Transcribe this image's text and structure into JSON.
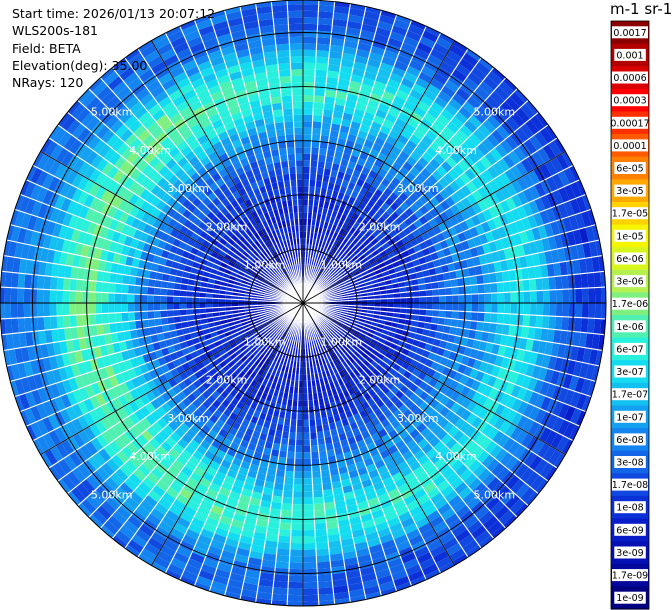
{
  "info": {
    "start_time": "Start time: 2026/01/13 20:07:12",
    "instrument": "WLS200s-181",
    "field": "Field: BETA",
    "elevation": "Elevation(deg): 35.00",
    "nrays": "NRays: 120"
  },
  "units": "m-1 sr-1",
  "colors": {
    "grid": "#000000",
    "ray_gap": "#ffffff",
    "ring_label": "#ffffff"
  },
  "chart_data": {
    "type": "heatmap",
    "projection": "polar (PPI)",
    "field": "BETA",
    "n_rays": 120,
    "range_rings_km": [
      1.0,
      2.0,
      3.0,
      4.0,
      5.0
    ],
    "ring_labels": [
      "1.00km",
      "2.00km",
      "3.00km",
      "4.00km",
      "5.00km"
    ],
    "max_range_km": 5.6,
    "azimuth_lines_deg": [
      0,
      30,
      60,
      90,
      120,
      150,
      180,
      210,
      240,
      270,
      300,
      330
    ],
    "label_azimuths_deg": [
      45,
      135,
      225,
      315
    ],
    "colorbar": {
      "labels": [
        "0.0017",
        "0.001",
        "0.0006",
        "0.0003",
        "0.00017",
        "0.0001",
        "6e-05",
        "3e-05",
        "1.7e-05",
        "1e-05",
        "6e-06",
        "3e-06",
        "1.7e-06",
        "1e-06",
        "6e-07",
        "3e-07",
        "1.7e-07",
        "1e-07",
        "6e-08",
        "3e-08",
        "1.7e-08",
        "1e-08",
        "6e-09",
        "3e-09",
        "1.7e-09",
        "1e-09"
      ],
      "colors": [
        "#8b0000",
        "#b20000",
        "#d80000",
        "#ff0000",
        "#ff3000",
        "#ff5a00",
        "#ff8000",
        "#ffa800",
        "#ffd200",
        "#f5f500",
        "#d8f51e",
        "#b4f050",
        "#7ff07f",
        "#50f0b0",
        "#28f0dc",
        "#14dcf0",
        "#14c0f0",
        "#14a0f0",
        "#1484f0",
        "#1466e8",
        "#1048e0",
        "#0c30d8",
        "#081cc8",
        "#0410b4",
        "#02089c",
        "#000080"
      ]
    },
    "profile": {
      "description_hint": "log10 backscatter by range (km) — near-field low, aerosol ring peak ~3.4-4.5 km, decreasing beyond",
      "range_km": [
        0.0,
        0.5,
        1.0,
        1.5,
        2.0,
        2.5,
        3.0,
        3.3,
        3.6,
        3.9,
        4.2,
        4.5,
        4.8,
        5.1,
        5.4,
        5.6
      ],
      "log10_beta": [
        -8.3,
        -8.3,
        -8.2,
        -8.1,
        -7.9,
        -7.6,
        -7.2,
        -6.9,
        -6.5,
        -6.2,
        -6.2,
        -6.6,
        -7.2,
        -7.5,
        -7.6,
        -7.6
      ]
    }
  }
}
